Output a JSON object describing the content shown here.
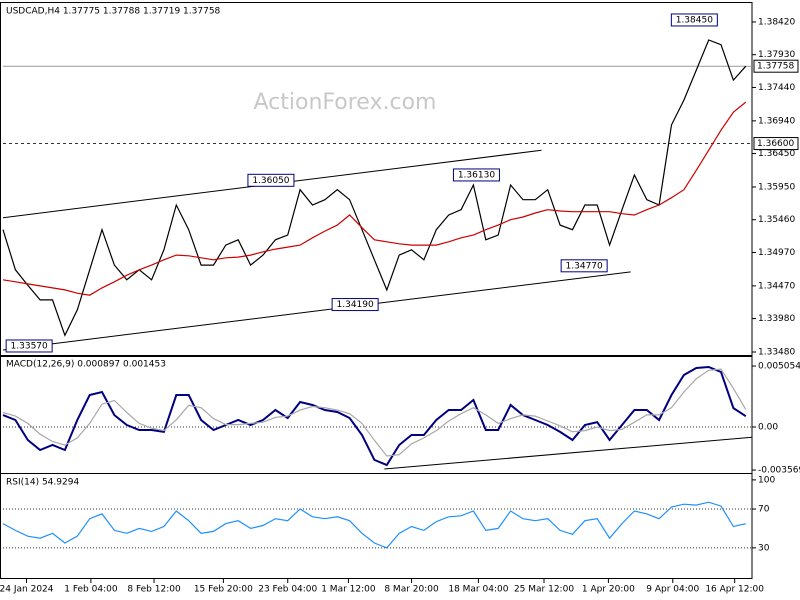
{
  "chart_data": [
    {
      "type": "line",
      "title": "USDCAD,H4  1.37775 1.37788 1.37719 1.37758",
      "annotation": "ActionForex.com",
      "xlim": [
        0,
        60.5
      ],
      "ylim": [
        1.33435,
        1.38674
      ],
      "yticks": [
        {
          "value": 1.3842,
          "label": "1.38420"
        },
        {
          "value": 1.3793,
          "label": "1.37930"
        },
        {
          "value": 1.3744,
          "label": "1.37440"
        },
        {
          "value": 1.3694,
          "label": "1.36940"
        },
        {
          "value": 1.3645,
          "label": "1.36450"
        },
        {
          "value": 1.3595,
          "label": "1.35950"
        },
        {
          "value": 1.3546,
          "label": "1.35460"
        },
        {
          "value": 1.3497,
          "label": "1.34970"
        },
        {
          "value": 1.3447,
          "label": "1.34470"
        },
        {
          "value": 1.3398,
          "label": "1.33980"
        },
        {
          "value": 1.3348,
          "label": "1.33480"
        }
      ],
      "series": [
        {
          "color": "#000000",
          "values": [
            1.3531,
            1.3471,
            1.3448,
            1.3426,
            1.3426,
            1.3373,
            1.3411,
            1.3471,
            1.3531,
            1.3478,
            1.3456,
            1.3471,
            1.3456,
            1.3501,
            1.3568,
            1.3531,
            1.3478,
            1.3478,
            1.3508,
            1.3516,
            1.3478,
            1.3493,
            1.3516,
            1.3523,
            1.3591,
            1.3568,
            1.3576,
            1.3591,
            1.3576,
            1.3531,
            1.3486,
            1.3441,
            1.3493,
            1.3501,
            1.3486,
            1.3531,
            1.3553,
            1.3561,
            1.3598,
            1.3516,
            1.3523,
            1.3598,
            1.3576,
            1.3576,
            1.3591,
            1.3538,
            1.3531,
            1.3568,
            1.3568,
            1.3508,
            1.3561,
            1.3613,
            1.3576,
            1.3568,
            1.3688,
            1.3725,
            1.377,
            1.3815,
            1.3808,
            1.3755,
            1.37758
          ]
        },
        {
          "color": "#cc0000",
          "values": [
            1.3456,
            1.3453,
            1.345,
            1.3447,
            1.3444,
            1.3441,
            1.3436,
            1.3433,
            1.3444,
            1.3453,
            1.3463,
            1.3471,
            1.3478,
            1.3486,
            1.3493,
            1.3492,
            1.3489,
            1.3486,
            1.3489,
            1.349,
            1.3493,
            1.3498,
            1.3502,
            1.3505,
            1.3508,
            1.3519,
            1.3529,
            1.3538,
            1.3553,
            1.3534,
            1.3516,
            1.3513,
            1.351,
            1.3508,
            1.3508,
            1.3508,
            1.3513,
            1.3519,
            1.3523,
            1.3531,
            1.3538,
            1.3546,
            1.355,
            1.3556,
            1.3561,
            1.3559,
            1.3558,
            1.3558,
            1.3558,
            1.3558,
            1.3555,
            1.3553,
            1.3561,
            1.3568,
            1.3579,
            1.3591,
            1.362,
            1.365,
            1.368,
            1.3707,
            1.3722
          ]
        }
      ],
      "levels": [
        {
          "value": 1.37758,
          "style": "solid"
        },
        {
          "value": 1.366,
          "label": "1.36600",
          "style": "dashed"
        }
      ],
      "callouts": [
        {
          "value": 1.3845,
          "label": "1.38450",
          "x": 57.7
        },
        {
          "value": 1.3605,
          "label": "1.36050",
          "x": 23.5
        },
        {
          "value": 1.3613,
          "label": "1.36130",
          "x": 40.1
        },
        {
          "value": 1.3477,
          "label": "1.34770",
          "x": 48.8
        },
        {
          "value": 1.3419,
          "label": "1.34190",
          "x": 30.3
        },
        {
          "value": 1.3357,
          "label": "1.33570",
          "x": 3.97
        }
      ],
      "trendlines": [
        {
          "x": [
            0,
            43.5
          ],
          "y": [
            1.3549,
            1.365
          ]
        },
        {
          "x": [
            0,
            50.7
          ],
          "y": [
            1.3351,
            1.3468
          ]
        }
      ]
    },
    {
      "type": "line",
      "title": "MACD(12,26,9) 0.000897 0.001453",
      "xlim": [
        0,
        60.5
      ],
      "ylim": [
        -0.00373,
        0.00572
      ],
      "yticks": [
        0.005054,
        {
          "value": 0,
          "label": "0.00"
        },
        -0.003569
      ],
      "series": [
        {
          "color": "#000080",
          "values": [
            0.00099,
            0.00058,
            -0.00108,
            -0.00191,
            -0.00149,
            -0.00191,
            0.00058,
            0.00265,
            0.0029,
            0.00099,
            0.00017,
            -0.00025,
            -0.00025,
            -0.00041,
            0.00265,
            0.00265,
            0.00058,
            -0.00025,
            0.00017,
            0.00058,
            0.00017,
            0.00058,
            0.00141,
            0.00075,
            0.00207,
            0.00182,
            0.00141,
            0.00124,
            0.00075,
            -0.00066,
            -0.00273,
            -0.00315,
            -0.00149,
            -0.00066,
            -0.00066,
            0.00058,
            0.00141,
            0.00141,
            0.00224,
            -0.00025,
            -0.00025,
            0.00182,
            0.00099,
            0.00058,
            0.00017,
            -0.00041,
            -0.00108,
            0.00017,
            0.00041,
            -0.00108,
            0.00017,
            0.00141,
            0.00141,
            0.00058,
            0.00265,
            0.00431,
            0.00489,
            0.00497,
            0.00456,
            0.00157,
            0.000897
          ]
        },
        {
          "color": "#a8a8a8",
          "values": [
            0.0012,
            0.0009,
            0.0003,
            -0.0006,
            -0.0012,
            -0.0015,
            -0.0009,
            0.0003,
            0.0019,
            0.0022,
            0.0012,
            0.0003,
            -0.0001,
            -0.0003,
            0.0006,
            0.0018,
            0.0016,
            0.0007,
            0.0002,
            0.0002,
            0.0003,
            0.0004,
            0.0008,
            0.0009,
            0.0014,
            0.0017,
            0.0016,
            0.0014,
            0.0011,
            0.0003,
            -0.0011,
            -0.0024,
            -0.0023,
            -0.0014,
            -0.0009,
            -0.0003,
            0.0005,
            0.0011,
            0.0016,
            0.001,
            0.0003,
            0.0007,
            0.001,
            0.0009,
            0.0005,
            0.0001,
            -0.0004,
            -0.0003,
            0,
            -0.0003,
            -0.0002,
            0.0004,
            0.001,
            0.001,
            0.0016,
            0.0029,
            0.004,
            0.0047,
            0.0048,
            0.0032,
            0.001453
          ]
        }
      ],
      "levels": [
        {
          "value": 0,
          "style": "dotted"
        }
      ],
      "trendlines": [
        {
          "x": [
            30.8,
            60.5
          ],
          "y": [
            -0.00348,
            -0.00085
          ]
        }
      ]
    },
    {
      "type": "line",
      "title": "RSI(14) 54.9294",
      "xlim": [
        0,
        60.5
      ],
      "ylim": [
        0,
        104
      ],
      "yticks": [
        100,
        70,
        30
      ],
      "series": [
        {
          "color": "#1e90ff",
          "values": [
            55,
            48,
            42,
            40,
            45,
            35,
            42,
            60,
            65,
            48,
            45,
            50,
            47,
            52,
            68,
            58,
            45,
            47,
            55,
            58,
            50,
            53,
            60,
            58,
            70,
            62,
            60,
            62,
            58,
            45,
            35,
            30,
            45,
            52,
            48,
            57,
            62,
            63,
            68,
            48,
            50,
            68,
            60,
            58,
            60,
            48,
            44,
            58,
            60,
            40,
            55,
            68,
            65,
            60,
            72,
            75,
            74,
            77,
            73,
            52,
            54.9294
          ]
        }
      ],
      "levels": [
        {
          "value": 70,
          "style": "dotted"
        },
        {
          "value": 30,
          "style": "dotted"
        }
      ],
      "xticks": [
        {
          "value": 1.9,
          "label": "24 Jan 2024"
        },
        {
          "value": 7.1,
          "label": "1 Feb 04:00"
        },
        {
          "value": 12.2,
          "label": "8 Feb 12:00"
        },
        {
          "value": 17.8,
          "label": "15 Feb 20:00"
        },
        {
          "value": 23.0,
          "label": "23 Feb 04:00"
        },
        {
          "value": 27.9,
          "label": "1 Mar 12:00"
        },
        {
          "value": 33.0,
          "label": "8 Mar 20:00"
        },
        {
          "value": 38.4,
          "label": "18 Mar 04:00"
        },
        {
          "value": 43.7,
          "label": "25 Mar 12:00"
        },
        {
          "value": 48.9,
          "label": "1 Apr 20:00"
        },
        {
          "value": 54.1,
          "label": "9 Apr 04:00"
        },
        {
          "value": 59.1,
          "label": "16 Apr 12:00"
        }
      ]
    }
  ]
}
